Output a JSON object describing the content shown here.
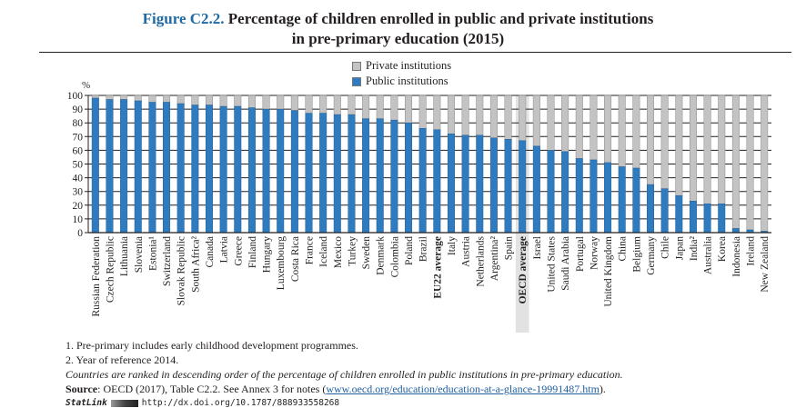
{
  "figure": {
    "number": "Figure C2.2.",
    "title_line1": "Percentage of children enrolled in public and private institutions",
    "title_line2": "in pre-primary education (2015)"
  },
  "colors": {
    "public": "#2f7bbf",
    "private": "#c3c3c3",
    "highlight": "#e2e2e2",
    "title_accent": "#1f6aa5"
  },
  "chart_data": {
    "type": "bar",
    "stacked": true,
    "title": "Percentage of children enrolled in public and private institutions in pre-primary education (2015)",
    "ylabel": "%",
    "xlabel": "",
    "ylim": [
      0,
      100
    ],
    "yticks": [
      0,
      10,
      20,
      30,
      40,
      50,
      60,
      70,
      80,
      90,
      100
    ],
    "grid": true,
    "legend": {
      "placement": "top-center",
      "entries": [
        "Private institutions",
        "Public institutions"
      ]
    },
    "highlight_category": "OECD average",
    "bold_categories": [
      "EU22 average",
      "OECD average"
    ],
    "categories": [
      "Russian Federation",
      "Czech Republic",
      "Lithuania",
      "Slovenia",
      "Estonia¹",
      "Switzerland",
      "Slovak Republic",
      "South Africa²",
      "Canada",
      "Latvia",
      "Greece",
      "Finland",
      "Hungary",
      "Luxembourg",
      "Costa Rica",
      "France",
      "Iceland",
      "Mexico",
      "Turkey",
      "Sweden",
      "Denmark",
      "Colombia",
      "Poland",
      "Brazil",
      "EU22 average",
      "Italy",
      "Austria",
      "Netherlands",
      "Argentina²",
      "Spain",
      "OECD average",
      "Israel",
      "United States",
      "Saudi Arabia",
      "Portugal",
      "Norway",
      "United Kingdom",
      "China",
      "Belgium",
      "Germany",
      "Chile",
      "Japan",
      "India²",
      "Australia",
      "Korea",
      "Indonesia",
      "Ireland",
      "New Zealand"
    ],
    "series": [
      {
        "name": "Public institutions",
        "values": [
          98,
          97,
          97,
          96,
          95,
          95,
          94,
          93,
          93,
          92,
          92,
          91,
          90,
          90,
          89,
          87,
          87,
          86,
          86,
          83,
          83,
          82,
          80,
          76,
          75,
          72,
          71,
          71,
          69,
          68,
          67,
          63,
          60,
          59,
          54,
          53,
          51,
          48,
          47,
          35,
          32,
          27,
          23,
          21,
          21,
          3,
          2,
          1
        ]
      },
      {
        "name": "Private institutions",
        "values": [
          2,
          3,
          3,
          4,
          5,
          5,
          6,
          7,
          7,
          8,
          8,
          9,
          10,
          10,
          11,
          13,
          13,
          14,
          14,
          17,
          17,
          18,
          20,
          24,
          25,
          28,
          29,
          29,
          31,
          32,
          33,
          37,
          40,
          41,
          46,
          47,
          49,
          52,
          53,
          65,
          68,
          73,
          77,
          79,
          79,
          97,
          98,
          99
        ]
      }
    ]
  },
  "notes": {
    "note1": "1. Pre-primary includes early childhood development programmes.",
    "note2": "2. Year of reference 2014.",
    "ranking": "Countries are ranked in descending order of the percentage of children enrolled in public institutions in pre-primary education.",
    "source_label": "Source",
    "source_text": ": OECD (2017), Table C2.2. See Annex 3 for notes (",
    "source_link": "www.oecd.org/education/education-at-a-glance-19991487.htm",
    "source_end": ").",
    "statlink_label": "StatLink",
    "statlink_url": "http://dx.doi.org/10.1787/888933558268"
  }
}
